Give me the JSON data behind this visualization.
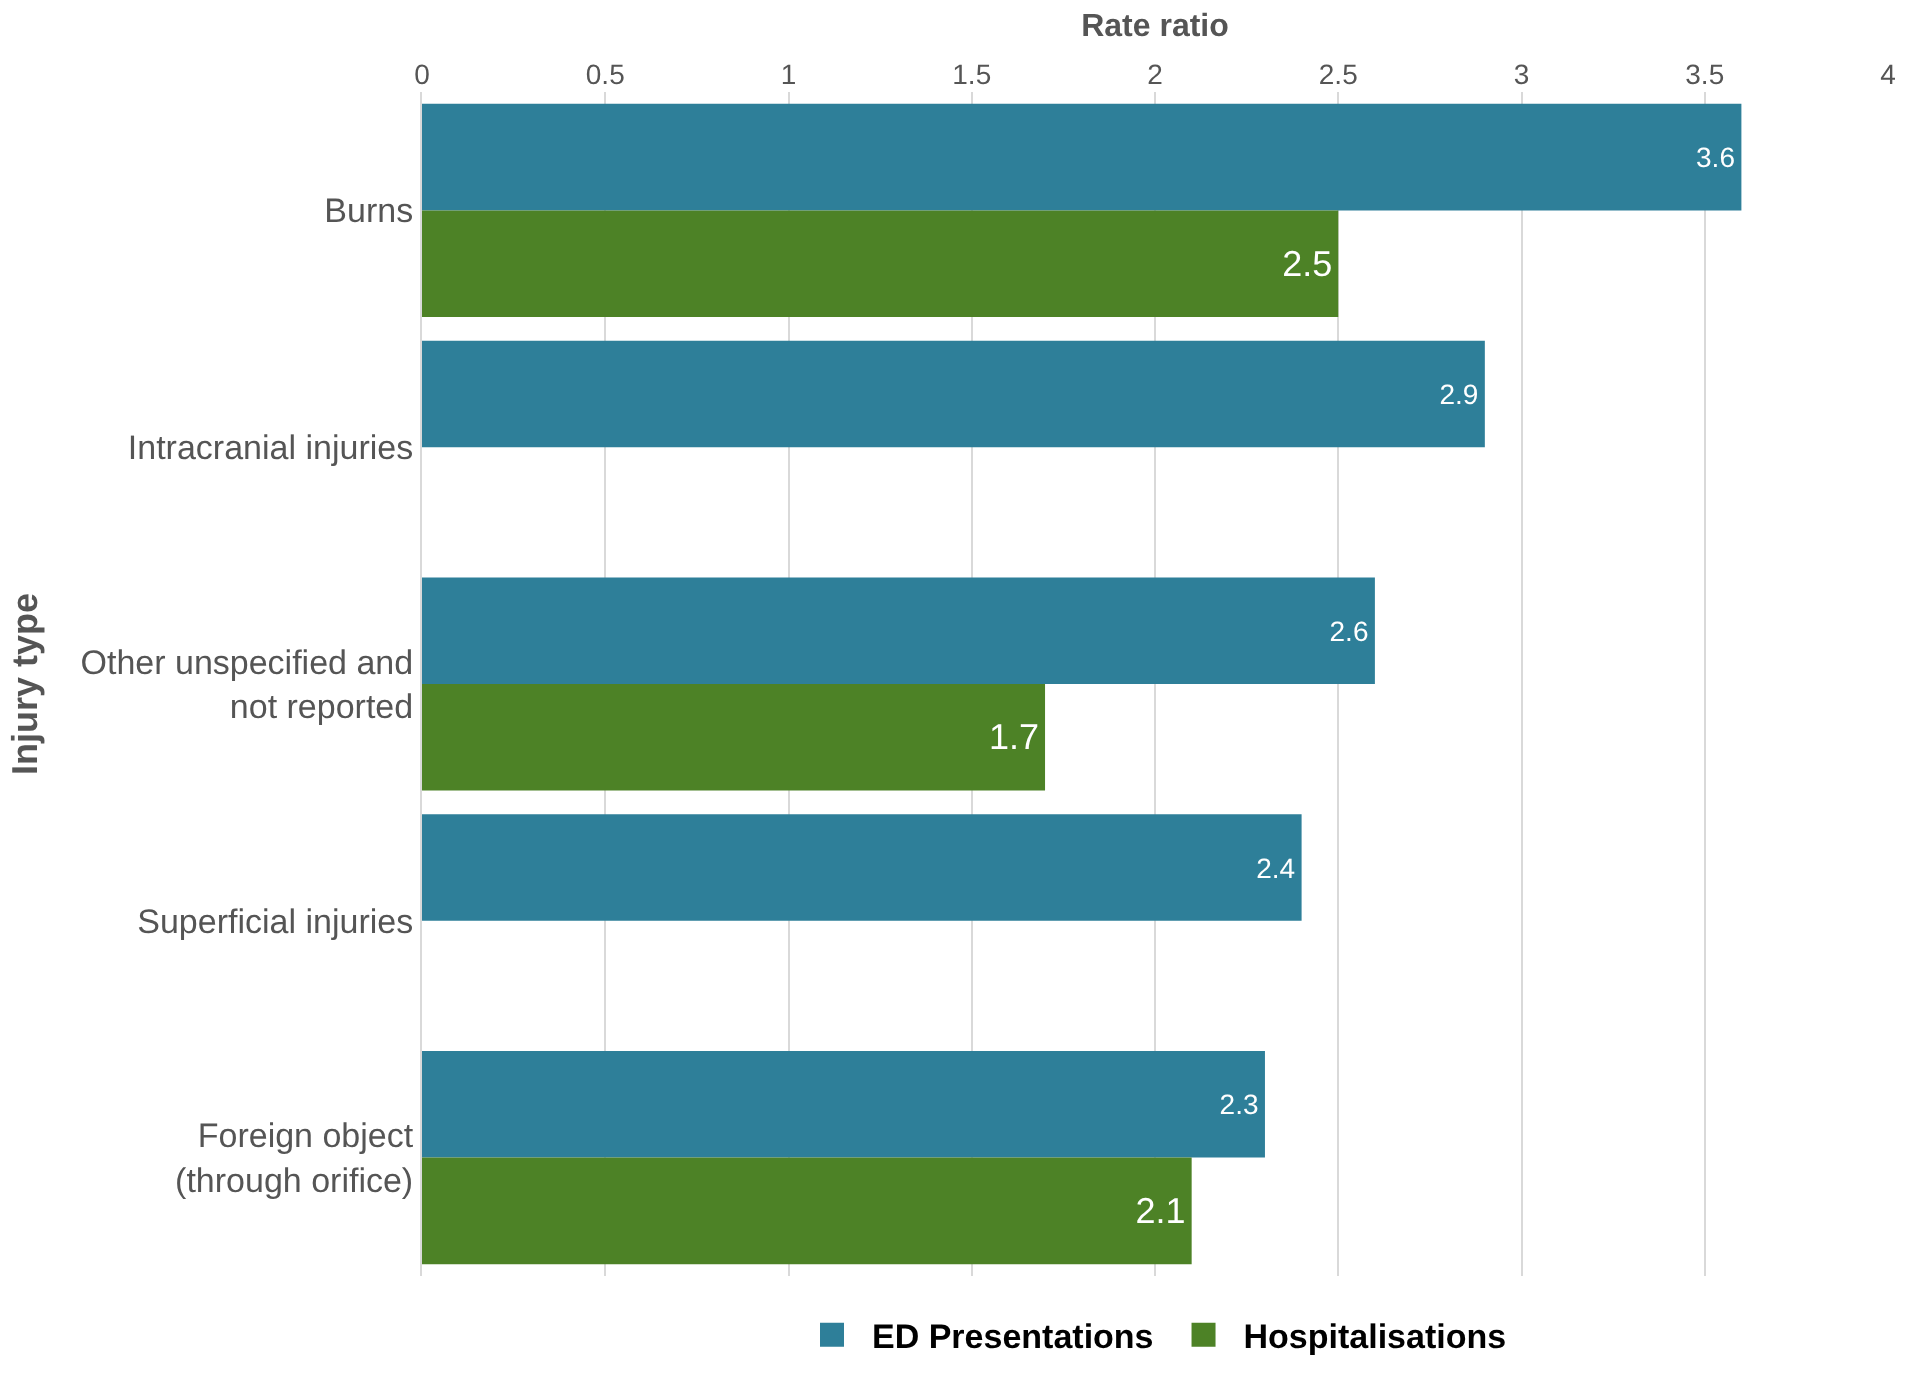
{
  "chart_data": {
    "type": "bar",
    "orientation": "horizontal",
    "xlabel": "Rate ratio",
    "ylabel": "Injury type",
    "categories": [
      "Burns",
      "Intracranial injuries",
      "Other unspecified and not reported",
      "Superficial injuries",
      "Foreign object (through orifice)"
    ],
    "series": [
      {
        "name": "ED Presentations",
        "color": "#2e7f99",
        "values": [
          3.6,
          2.9,
          2.6,
          2.4,
          2.3
        ]
      },
      {
        "name": "Hospitalisations",
        "color": "#4d8226",
        "values": [
          2.5,
          null,
          1.7,
          null,
          2.1
        ]
      }
    ],
    "xlim": [
      0,
      4
    ],
    "xticks": [
      0,
      0.5,
      1,
      1.5,
      2,
      2.5,
      3,
      3.5,
      4
    ],
    "grid": "x",
    "legend": "bottom",
    "data_labels": true
  }
}
